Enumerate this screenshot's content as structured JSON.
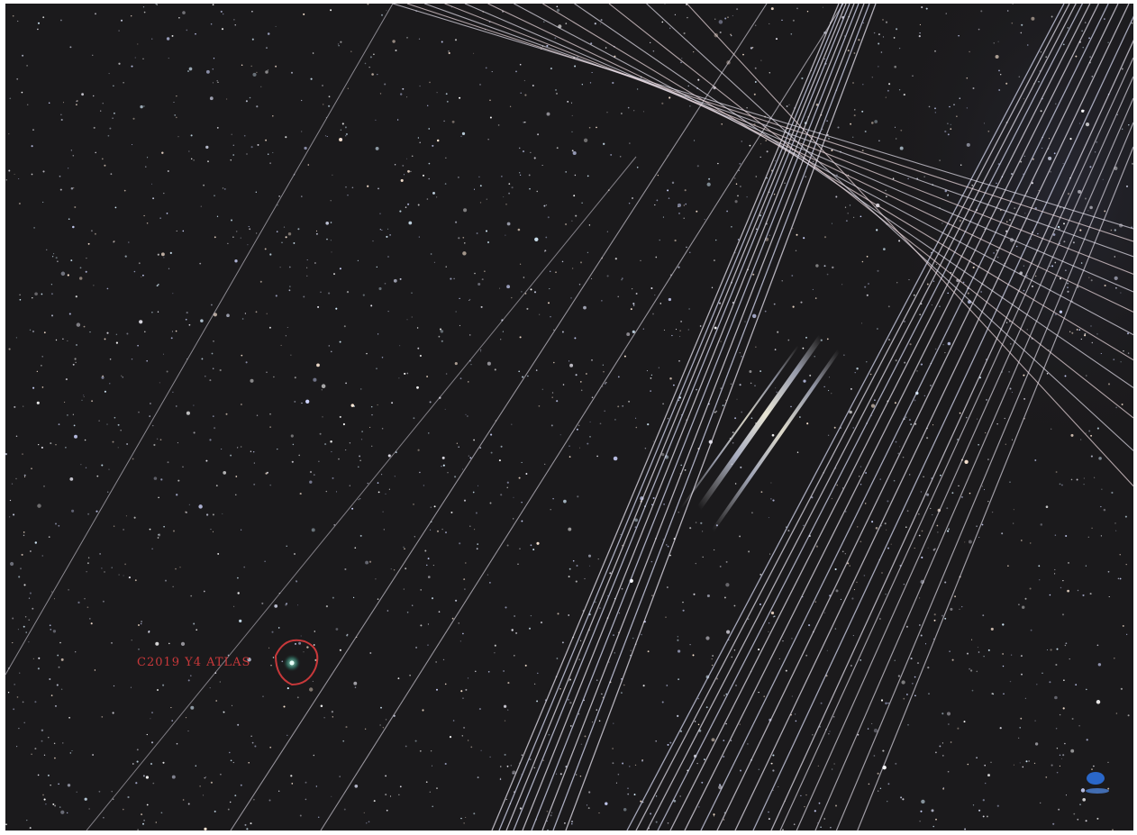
{
  "photo": {
    "subject": "night-sky-satellite-trails",
    "background_color": "#1b1a1c",
    "trail_color": "#e6e2ee",
    "trail_color_warm": "#f1dde2",
    "trail_color_cool": "#d9dcf4"
  },
  "annotation": {
    "label": "C2019 Y4 ATLAS",
    "color": "#c8383a"
  },
  "corner_mark": {
    "icon": "blue-logo-icon",
    "color": "#2a67c9"
  }
}
